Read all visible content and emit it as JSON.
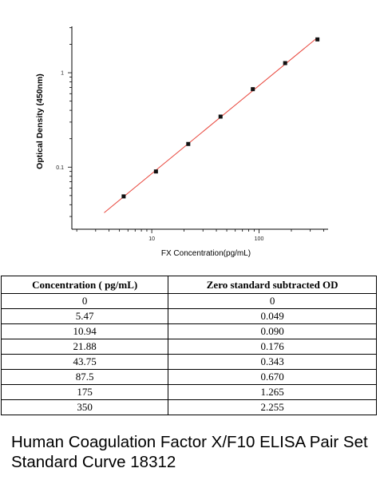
{
  "chart_data": {
    "type": "scatter",
    "xlabel": "FX  Concentration(pg/mL)",
    "ylabel": "Optical Density (450nm)",
    "x_scale": "log",
    "y_scale": "log",
    "xlim": [
      1.8,
      440
    ],
    "ylim": [
      0.022,
      3.1
    ],
    "x_ticks": [
      10,
      100
    ],
    "x_tick_labels": [
      "10",
      "100"
    ],
    "y_ticks": [
      0.1,
      1
    ],
    "y_tick_labels": [
      "0.1",
      "1"
    ],
    "grid": false,
    "series": [
      {
        "x": [
          5.47,
          10.94,
          21.88,
          43.75,
          87.5,
          175,
          350
        ],
        "y": [
          0.049,
          0.09,
          0.176,
          0.343,
          0.67,
          1.265,
          2.255
        ]
      }
    ],
    "fit_line": {
      "color": "#e8443a",
      "x_range": [
        3.6,
        350
      ]
    },
    "marker_color": "#111111"
  },
  "table": {
    "headers": [
      "Concentration ( pg/mL)",
      "Zero standard subtracted OD"
    ],
    "rows": [
      [
        "0",
        "0"
      ],
      [
        "5.47",
        "0.049"
      ],
      [
        "10.94",
        "0.090"
      ],
      [
        "21.88",
        "0.176"
      ],
      [
        "43.75",
        "0.343"
      ],
      [
        "87.5",
        "0.670"
      ],
      [
        "175",
        "1.265"
      ],
      [
        "350",
        "2.255"
      ]
    ]
  },
  "caption": "Human Coagulation Factor X/F10 ELISA Pair Set Standard Curve 18312"
}
